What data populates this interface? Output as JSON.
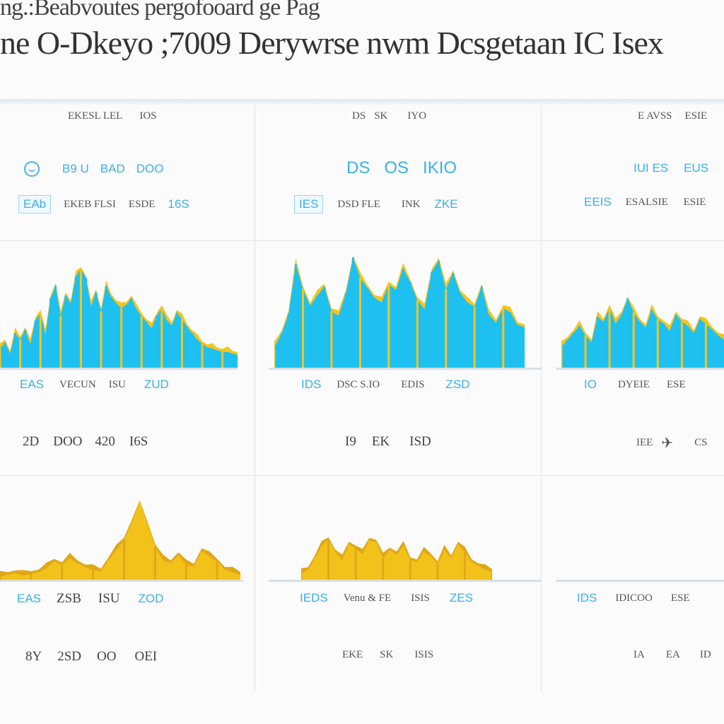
{
  "page": {
    "title_top": "ng.:Beabvoutes pergofooard ge Pag",
    "title_main": "ne O-Dkeyo ;7009 Derywrse nwm Dcsgetaan IC Isex"
  },
  "panels": [
    {
      "header": [
        "EKESL LEL",
        "IOS"
      ],
      "stats": [
        "B9 U",
        "BAD",
        "DOO"
      ],
      "labels": [
        "EAb",
        "EKEB FLSI",
        "ESDE",
        "16S"
      ],
      "metrics1": [
        "EAS",
        "VECUN",
        "ISU",
        "ZUD"
      ],
      "metrics2": [
        "2D",
        "DOO",
        "420",
        "I6S"
      ],
      "metrics3": [
        "EAS",
        "ZSB",
        "ISU",
        "ZOD"
      ],
      "metrics4": [
        "8Y",
        "2SD",
        "OO",
        "OEI"
      ]
    },
    {
      "header": [
        "DS",
        "SK",
        "IYO"
      ],
      "stats": [
        "DS",
        "OS",
        "IKIO"
      ],
      "labels": [
        "IES",
        "DSD FLE",
        "INK",
        "ZKE"
      ],
      "metrics1": [
        "IDS",
        "DSC S.IO",
        "EDIS",
        "ZSD"
      ],
      "metrics2": [
        "I9",
        "EK",
        "ISD"
      ],
      "metrics3": [
        "IEDS",
        "Venu & FE",
        "ISIS",
        "ZES"
      ],
      "metrics4": [
        "EKE",
        "SK",
        "ISIS"
      ]
    },
    {
      "header": [
        "E AVSS",
        "ESIE"
      ],
      "stats": [
        "IUI ES",
        "EUS"
      ],
      "labels": [
        "EEIS",
        "ESALSIE",
        "ESIE"
      ],
      "metrics1": [
        "IO",
        "DYEIE",
        "ESE"
      ],
      "metrics2": [
        "IEE",
        "CS"
      ],
      "metrics3": [
        "IDS",
        "IDICOO",
        "ESE"
      ],
      "metrics4": [
        "IA",
        "EA",
        "ID"
      ]
    }
  ],
  "chart_data": [
    {
      "type": "area",
      "color": "#1ec0f0",
      "accent": "#f4c51f",
      "values": [
        12,
        16,
        9,
        22,
        18,
        24,
        15,
        30,
        35,
        21,
        44,
        52,
        33,
        46,
        41,
        58,
        63,
        57,
        39,
        48,
        36,
        52,
        45,
        41,
        38,
        40,
        44,
        37,
        33,
        29,
        25,
        33,
        38,
        30,
        27,
        35,
        31,
        26,
        22,
        18,
        15,
        13,
        12,
        11,
        10,
        10,
        9,
        8
      ]
    },
    {
      "type": "area",
      "color": "#1ec0f0",
      "accent": "#f4c51f",
      "values": [
        18,
        30,
        48,
        92,
        70,
        55,
        64,
        72,
        50,
        46,
        66,
        98,
        80,
        71,
        62,
        58,
        74,
        69,
        88,
        76,
        60,
        52,
        85,
        95,
        70,
        84,
        66,
        58,
        54,
        72,
        47,
        40,
        53,
        49,
        38,
        36
      ]
    },
    {
      "type": "area",
      "color": "#1ec0f0",
      "accent": "#f4c51f",
      "values": [
        18,
        24,
        30,
        36,
        28,
        22,
        44,
        40,
        52,
        38,
        46,
        60,
        48,
        40,
        35,
        50,
        42,
        38,
        32,
        46,
        40,
        36,
        30,
        42,
        38,
        33,
        28,
        24
      ]
    },
    {
      "type": "area",
      "color": "#f2c21b",
      "accent": "#e0a818",
      "values": [
        4,
        6,
        8,
        5,
        7,
        9,
        14,
        22,
        18,
        26,
        20,
        15,
        12,
        10,
        24,
        36,
        48,
        70,
        95,
        68,
        40,
        24,
        20,
        30,
        18,
        16,
        35,
        28,
        22,
        12,
        9,
        6
      ]
    },
    {
      "type": "area",
      "color": "#f2c21b",
      "accent": "#e0a818",
      "values": [
        6,
        10,
        22,
        34,
        42,
        28,
        20,
        36,
        32,
        26,
        40,
        38,
        22,
        30,
        26,
        34,
        20,
        18,
        28,
        24,
        16,
        30,
        22,
        36,
        28,
        18,
        14,
        10,
        8
      ]
    }
  ]
}
